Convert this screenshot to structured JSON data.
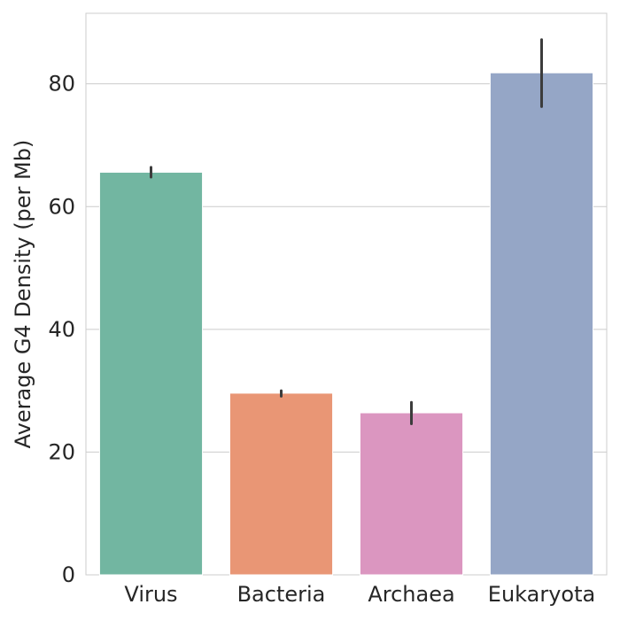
{
  "chart_data": {
    "type": "bar",
    "title": "",
    "xlabel": "",
    "ylabel": "Average G4 Density (per Mb)",
    "categories": [
      "Virus",
      "Bacteria",
      "Archaea",
      "Eukaryota"
    ],
    "values": [
      65.6,
      29.6,
      26.4,
      81.8
    ],
    "error_low": [
      64.8,
      29.1,
      24.6,
      76.3
    ],
    "error_high": [
      66.4,
      30.0,
      28.1,
      87.2
    ],
    "colors": [
      "#72b6a1",
      "#e99675",
      "#db96c0",
      "#95a6c6"
    ],
    "error_color": "#3c3c3c",
    "ylim": [
      0,
      91.5
    ],
    "yticks": [
      0,
      20,
      40,
      60,
      80
    ],
    "grid": "horizontal",
    "legend": "none"
  }
}
